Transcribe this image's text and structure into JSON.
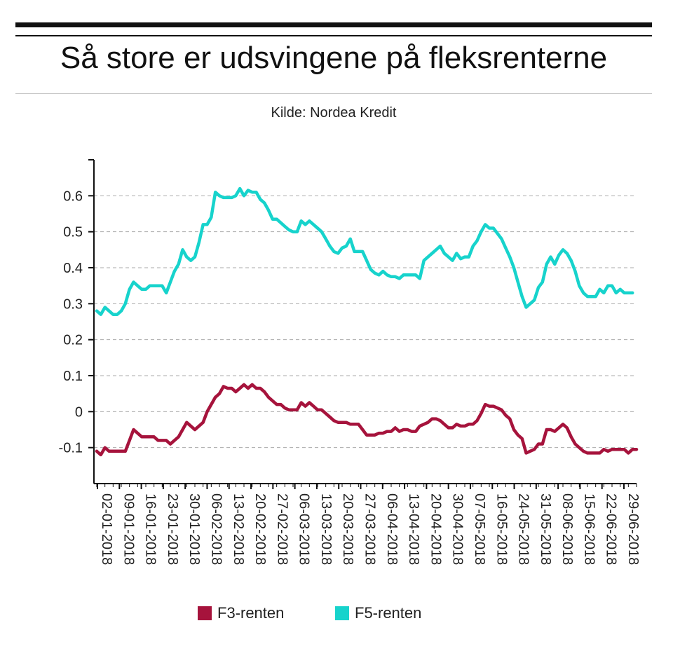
{
  "header": {
    "title": "Så store er udsvingene på fleksrenterne",
    "subtitle": "Kilde: Nordea Kredit"
  },
  "chart_data": {
    "type": "line",
    "title": "Så store er udsvingene på fleksrenterne",
    "subtitle": "Kilde: Nordea Kredit",
    "xlabel": "",
    "ylabel": "",
    "ylim": [
      -0.2,
      0.7
    ],
    "yticks": [
      -0.1,
      0,
      0.1,
      0.2,
      0.3,
      0.4,
      0.5,
      0.6
    ],
    "ytick_labels": [
      "-0.1",
      "0",
      "0.1",
      "0.2",
      "0.3",
      "0.4",
      "0.5",
      "0.6"
    ],
    "grid": "horizontal dashed",
    "legend_position": "bottom-center",
    "x_tick_labels": [
      "02-01-2018",
      "09-01-2018",
      "16-01-2018",
      "23-01-2018",
      "30-01-2018",
      "06-02-2018",
      "13-02-2018",
      "20-02-2018",
      "27-02-2018",
      "06-03-2018",
      "13-03-2018",
      "20-03-2018",
      "27-03-2018",
      "06-04-2018",
      "13-04-2018",
      "20-04-2018",
      "30-04-2018",
      "07-05-2018",
      "16-05-2018",
      "24-05-2018",
      "31-05-2018",
      "08-06-2018",
      "15-06-2018",
      "22-06-2018",
      "29-06-2018"
    ],
    "series": [
      {
        "name": "F3-renten",
        "color": "#a6133c",
        "values": [
          -0.11,
          -0.12,
          -0.1,
          -0.11,
          -0.11,
          -0.11,
          -0.11,
          -0.11,
          -0.08,
          -0.05,
          -0.06,
          -0.07,
          -0.07,
          -0.07,
          -0.07,
          -0.08,
          -0.08,
          -0.08,
          -0.09,
          -0.08,
          -0.07,
          -0.05,
          -0.03,
          -0.04,
          -0.05,
          -0.04,
          -0.03,
          0.0,
          0.02,
          0.04,
          0.05,
          0.07,
          0.065,
          0.065,
          0.055,
          0.065,
          0.075,
          0.065,
          0.075,
          0.065,
          0.065,
          0.055,
          0.04,
          0.03,
          0.02,
          0.02,
          0.01,
          0.005,
          0.005,
          0.005,
          0.025,
          0.015,
          0.025,
          0.015,
          0.005,
          0.005,
          -0.005,
          -0.015,
          -0.025,
          -0.03,
          -0.03,
          -0.03,
          -0.035,
          -0.035,
          -0.035,
          -0.05,
          -0.065,
          -0.065,
          -0.065,
          -0.06,
          -0.06,
          -0.055,
          -0.055,
          -0.045,
          -0.055,
          -0.05,
          -0.05,
          -0.055,
          -0.055,
          -0.04,
          -0.035,
          -0.03,
          -0.02,
          -0.02,
          -0.025,
          -0.035,
          -0.045,
          -0.045,
          -0.035,
          -0.04,
          -0.04,
          -0.035,
          -0.035,
          -0.025,
          -0.005,
          0.02,
          0.015,
          0.015,
          0.01,
          0.005,
          -0.01,
          -0.02,
          -0.05,
          -0.065,
          -0.075,
          -0.115,
          -0.11,
          -0.105,
          -0.09,
          -0.09,
          -0.05,
          -0.05,
          -0.055,
          -0.045,
          -0.035,
          -0.045,
          -0.07,
          -0.09,
          -0.1,
          -0.11,
          -0.115,
          -0.115,
          -0.115,
          -0.115,
          -0.105,
          -0.11,
          -0.105,
          -0.105,
          -0.105,
          -0.105,
          -0.115,
          -0.105,
          -0.105
        ]
      },
      {
        "name": "F5-renten",
        "color": "#17d3cc",
        "values": [
          0.28,
          0.27,
          0.29,
          0.28,
          0.27,
          0.27,
          0.28,
          0.3,
          0.34,
          0.36,
          0.35,
          0.34,
          0.34,
          0.35,
          0.35,
          0.35,
          0.35,
          0.33,
          0.36,
          0.39,
          0.41,
          0.45,
          0.43,
          0.42,
          0.43,
          0.47,
          0.52,
          0.52,
          0.54,
          0.61,
          0.6,
          0.595,
          0.595,
          0.595,
          0.6,
          0.62,
          0.6,
          0.615,
          0.61,
          0.61,
          0.59,
          0.58,
          0.56,
          0.535,
          0.535,
          0.525,
          0.515,
          0.505,
          0.5,
          0.5,
          0.53,
          0.52,
          0.53,
          0.52,
          0.51,
          0.5,
          0.48,
          0.46,
          0.445,
          0.44,
          0.455,
          0.46,
          0.48,
          0.445,
          0.445,
          0.445,
          0.42,
          0.395,
          0.385,
          0.38,
          0.39,
          0.38,
          0.375,
          0.375,
          0.37,
          0.38,
          0.38,
          0.38,
          0.38,
          0.37,
          0.42,
          0.43,
          0.44,
          0.45,
          0.46,
          0.44,
          0.43,
          0.42,
          0.44,
          0.425,
          0.43,
          0.43,
          0.46,
          0.475,
          0.5,
          0.52,
          0.51,
          0.51,
          0.495,
          0.48,
          0.455,
          0.43,
          0.4,
          0.36,
          0.32,
          0.29,
          0.3,
          0.31,
          0.345,
          0.36,
          0.41,
          0.43,
          0.41,
          0.435,
          0.45,
          0.44,
          0.42,
          0.39,
          0.35,
          0.33,
          0.32,
          0.32,
          0.32,
          0.34,
          0.33,
          0.35,
          0.35,
          0.33,
          0.34,
          0.33,
          0.33,
          0.33
        ]
      }
    ]
  }
}
